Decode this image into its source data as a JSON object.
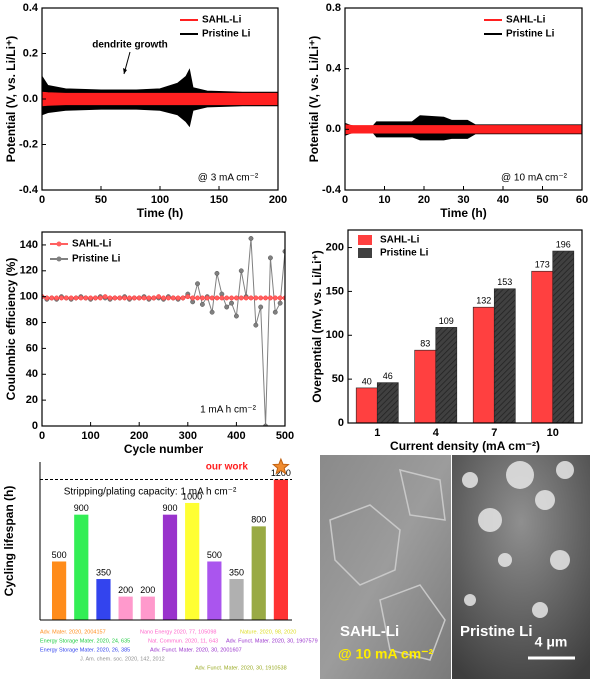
{
  "chart_data": [
    {
      "type": "band",
      "x_label": "Time (h)",
      "y_label": "Potential (V, vs. Li/Li⁺)",
      "xlim": [
        0,
        200
      ],
      "xticks": [
        0,
        50,
        100,
        150,
        200
      ],
      "ylim": [
        -0.4,
        0.4
      ],
      "yticks": [
        -0.4,
        -0.2,
        {
          "value": 0,
          "label": "0.0"
        },
        0.2,
        0.4
      ],
      "legend": "upper right",
      "annotations": [
        "dendrite growth",
        "@ 3 mA cm⁻²"
      ],
      "x": [
        0,
        5,
        20,
        50,
        80,
        100,
        115,
        122,
        125,
        128,
        140,
        170,
        200
      ],
      "series": [
        {
          "name": "Pristine Li",
          "color": "#000000",
          "upper": [
            0.1,
            0.06,
            0.045,
            0.04,
            0.04,
            0.045,
            0.07,
            0.1,
            0.13,
            0.05,
            0.035,
            0.03,
            0.03
          ],
          "lower": [
            -0.07,
            -0.06,
            -0.05,
            -0.045,
            -0.045,
            -0.05,
            -0.07,
            -0.1,
            -0.12,
            -0.05,
            -0.035,
            -0.03,
            -0.03
          ]
        },
        {
          "name": "SAHL-Li",
          "color": "#ff2020",
          "upper": [
            0.03,
            0.028,
            0.025,
            0.025,
            0.025,
            0.025,
            0.025,
            0.025,
            0.025,
            0.025,
            0.025,
            0.025,
            0.025
          ],
          "lower": [
            -0.03,
            -0.028,
            -0.025,
            -0.025,
            -0.025,
            -0.025,
            -0.025,
            -0.025,
            -0.025,
            -0.025,
            -0.025,
            -0.025,
            -0.025
          ]
        }
      ]
    },
    {
      "type": "band",
      "x_label": "Time (h)",
      "y_label": "Potential (V, vs. Li/Li⁺)",
      "xlim": [
        0,
        60
      ],
      "xticks": [
        0,
        10,
        20,
        30,
        40,
        50,
        60
      ],
      "ylim": [
        -0.4,
        0.8
      ],
      "yticks": [
        -0.4,
        {
          "value": 0,
          "label": "0.0"
        },
        0.4,
        0.8
      ],
      "legend": "upper right",
      "annotations": [
        "@ 10 mA cm⁻²"
      ],
      "x": [
        0,
        2,
        7,
        8,
        17,
        19,
        25,
        27,
        31,
        33,
        45,
        60
      ],
      "series": [
        {
          "name": "Pristine Li",
          "color": "#000000",
          "upper": [
            0.04,
            0.02,
            0.02,
            0.05,
            0.05,
            0.09,
            0.08,
            0.06,
            0.06,
            0.03,
            0.03,
            0.03
          ],
          "lower": [
            -0.04,
            -0.02,
            -0.02,
            -0.05,
            -0.05,
            -0.07,
            -0.07,
            -0.06,
            -0.06,
            -0.03,
            -0.03,
            -0.03
          ]
        },
        {
          "name": "SAHL-Li",
          "color": "#ff2020",
          "upper": [
            0.03,
            0.025,
            0.025,
            0.025,
            0.025,
            0.025,
            0.025,
            0.025,
            0.025,
            0.025,
            0.025,
            0.025
          ],
          "lower": [
            -0.03,
            -0.025,
            -0.025,
            -0.025,
            -0.025,
            -0.025,
            -0.025,
            -0.025,
            -0.025,
            -0.025,
            -0.025,
            -0.025
          ]
        }
      ]
    },
    {
      "type": "line",
      "x_label": "Cycle number",
      "y_label": "Coulombic efficiency (%)",
      "xlim": [
        0,
        500
      ],
      "xticks": [
        0,
        100,
        200,
        300,
        400,
        500
      ],
      "ylim": [
        0,
        150
      ],
      "yticks": [
        0,
        20,
        40,
        60,
        80,
        100,
        120,
        140
      ],
      "legend": "upper left",
      "annotations": [
        "1 mA h cm⁻²"
      ],
      "x": [
        0,
        10,
        20,
        30,
        40,
        50,
        60,
        70,
        80,
        90,
        100,
        110,
        120,
        130,
        140,
        150,
        160,
        170,
        180,
        190,
        200,
        210,
        220,
        230,
        240,
        250,
        260,
        270,
        280,
        290,
        300,
        310,
        320,
        330,
        340,
        350,
        360,
        370,
        380,
        390,
        400,
        410,
        420,
        430,
        440,
        450,
        460,
        470,
        480,
        490,
        500
      ],
      "series": [
        {
          "name": "Pristine Li",
          "color": "#808080",
          "values": [
            100,
            98,
            99,
            98,
            100,
            99,
            98,
            99,
            100,
            99,
            98,
            99,
            100,
            99,
            98,
            99,
            99,
            100,
            98,
            99,
            99,
            100,
            98,
            99,
            99,
            98,
            100,
            99,
            98,
            99,
            102,
            96,
            110,
            94,
            100,
            88,
            118,
            102,
            92,
            95,
            85,
            120,
            100,
            145,
            78,
            92,
            0,
            130,
            88,
            95,
            135
          ]
        },
        {
          "name": "SAHL-Li",
          "color": "#ff6060",
          "values": [
            100,
            99,
            99,
            99,
            99,
            99,
            99,
            99,
            99,
            99,
            99,
            99,
            99,
            100,
            99,
            99,
            99,
            99,
            99,
            99,
            99,
            99,
            99,
            99,
            100,
            99,
            99,
            99,
            99,
            99,
            100,
            99,
            99,
            99,
            99,
            99,
            99,
            99,
            99,
            99,
            99,
            99,
            99,
            99,
            99,
            99,
            99,
            99,
            99,
            99,
            99
          ]
        }
      ]
    },
    {
      "type": "bar",
      "x_label": "Current density (mA cm⁻²)",
      "y_label": "Overpential (mV, vs. Li/Li⁺)",
      "categories": [
        "1",
        "4",
        "7",
        "10"
      ],
      "ylim": [
        0,
        220
      ],
      "yticks": [
        0,
        50,
        100,
        150,
        200
      ],
      "legend": "upper left",
      "series": [
        {
          "name": "SAHL-Li",
          "color": "#ff4040",
          "values": [
            40,
            83,
            132,
            173
          ]
        },
        {
          "name": "Pristine Li",
          "color": "#404040",
          "values": [
            46,
            109,
            153,
            196
          ]
        }
      ]
    },
    {
      "type": "bar",
      "y_label": "Cycling lifespan (h)",
      "ylim": [
        0,
        1350
      ],
      "annotations": [
        "our work",
        "Stripping/plating capacity: 1 mA h cm⁻²"
      ],
      "categories": [
        null,
        null,
        null,
        null,
        null,
        null,
        null,
        null,
        null,
        null,
        null
      ],
      "values": [
        500,
        900,
        350,
        200,
        200,
        900,
        1000,
        500,
        350,
        800,
        1200
      ],
      "colors": [
        "#ff8c1a",
        "#33ee55",
        "#3344ee",
        "#ff99cc",
        "#ff99cc",
        "#9933cc",
        "#ffff33",
        "#aa55ee",
        "#b0b0b0",
        "#99aa44",
        "#ff3333"
      ],
      "references": [
        {
          "text": "Adv. Mater. 2020, 2004157",
          "color": "#ff8c1a"
        },
        {
          "text": "Nano Energy 2020, 77, 105098",
          "color": "#ff66cc"
        },
        {
          "text": "Nature. 2020, 98, 2020",
          "color": "#dddd22"
        },
        {
          "text": "Energy Storage Mater. 2020, 24, 635",
          "color": "#22cc44"
        },
        {
          "text": "Nat. Commun. 2020, 11, 643",
          "color": "#ff66cc"
        },
        {
          "text": "Adv. Funct. Mater. 2020, 30, 1907579",
          "color": "#9933cc"
        },
        {
          "text": "Energy Storage Mater. 2020, 26, 385",
          "color": "#3344ee"
        },
        {
          "text": "Adv. Funct. Mater. 2020, 30, 2001607",
          "color": "#9933cc"
        },
        {
          "text": "J. Am. chem. soc. 2020, 142, 2012",
          "color": "#909090"
        },
        {
          "text": "Adv. Funct. Mater. 2020, 30, 1910538",
          "color": "#99aa22"
        }
      ]
    }
  ],
  "images": {
    "left_label": "SAHL-Li",
    "left_condition": "@ 10 mA cm⁻²",
    "right_label": "Pristine Li",
    "scale_bar": "4 μm"
  }
}
